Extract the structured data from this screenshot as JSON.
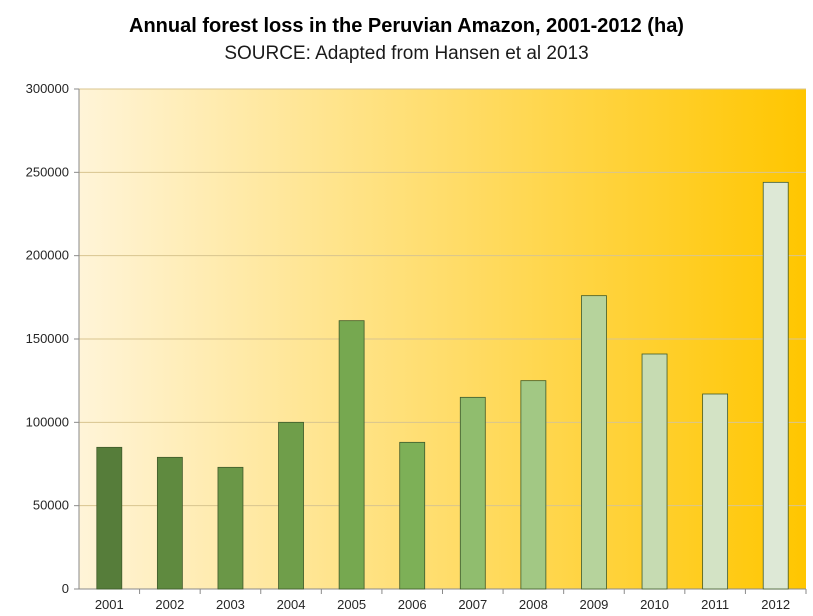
{
  "chart_data": {
    "type": "bar",
    "title": "Annual forest loss in the Peruvian Amazon, 2001-2012 (ha)",
    "subtitle": "SOURCE: Adapted from Hansen et al 2013",
    "xlabel": "",
    "ylabel": "",
    "ylim": [
      0,
      300000
    ],
    "yticks": [
      "0",
      "50000",
      "100000",
      "150000",
      "200000",
      "250000",
      "300000"
    ],
    "categories": [
      "2001",
      "2002",
      "2003",
      "2004",
      "2005",
      "2006",
      "2007",
      "2008",
      "2009",
      "2010",
      "2011",
      "2012"
    ],
    "values": [
      85000,
      79000,
      73000,
      100000,
      161000,
      88000,
      115000,
      125000,
      176000,
      141000,
      117000,
      244000
    ],
    "bar_colors": [
      "#567d3a",
      "#5f8a3f",
      "#6a9747",
      "#6f9e4a",
      "#76a850",
      "#7db057",
      "#90bd6e",
      "#a2c884",
      "#b6d39c",
      "#c6dbb2",
      "#d3e3c5",
      "#dde8d6"
    ],
    "grid": true,
    "legend": "none",
    "background_gradient": [
      "#fff4d8",
      "#ffc600"
    ]
  }
}
